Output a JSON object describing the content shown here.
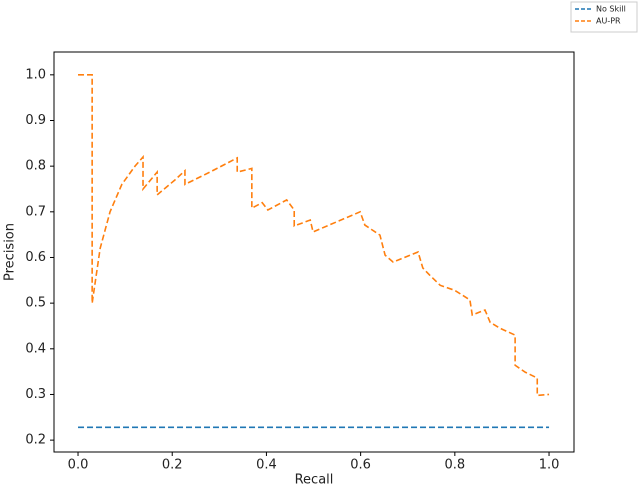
{
  "chart_data": {
    "type": "line",
    "x_label": "Recall",
    "y_label": "Precision",
    "xlim": [
      -0.051,
      1.053
    ],
    "ylim": [
      0.174,
      1.05
    ],
    "xticks": [
      {
        "value": 0,
        "label": "0.0"
      },
      0.2,
      0.4,
      0.6,
      0.8,
      {
        "value": 1,
        "label": "1.0"
      }
    ],
    "yticks": [
      0.2,
      0.3,
      0.4,
      0.5,
      0.6,
      0.7,
      0.8,
      0.9,
      {
        "value": 1,
        "label": "1.0"
      }
    ],
    "series": [
      {
        "name": "No Skill",
        "color": "#1f77b4",
        "x": [
          0,
          1
        ],
        "values": [
          0.228,
          0.228
        ]
      },
      {
        "name": "AU-PR",
        "color": "#ff7f0e",
        "x": [
          0,
          0.03,
          0.03,
          0.047,
          0.068,
          0.093,
          0.121,
          0.138,
          0.138,
          0.168,
          0.168,
          0.206,
          0.227,
          0.227,
          0.28,
          0.338,
          0.338,
          0.369,
          0.369,
          0.391,
          0.403,
          0.443,
          0.459,
          0.459,
          0.493,
          0.499,
          0.599,
          0.609,
          0.641,
          0.652,
          0.669,
          0.722,
          0.732,
          0.747,
          0.769,
          0.8,
          0.832,
          0.837,
          0.864,
          0.875,
          0.896,
          0.928,
          0.928,
          0.949,
          0.975,
          0.975,
          1.0
        ],
        "values": [
          1.0,
          1.0,
          0.5,
          0.62,
          0.7,
          0.76,
          0.8,
          0.82,
          0.75,
          0.787,
          0.737,
          0.77,
          0.79,
          0.76,
          0.787,
          0.818,
          0.787,
          0.795,
          0.708,
          0.72,
          0.704,
          0.726,
          0.704,
          0.669,
          0.682,
          0.656,
          0.7,
          0.671,
          0.649,
          0.605,
          0.59,
          0.612,
          0.577,
          0.561,
          0.539,
          0.528,
          0.507,
          0.474,
          0.485,
          0.458,
          0.445,
          0.43,
          0.364,
          0.349,
          0.336,
          0.298,
          0.3
        ]
      }
    ]
  }
}
